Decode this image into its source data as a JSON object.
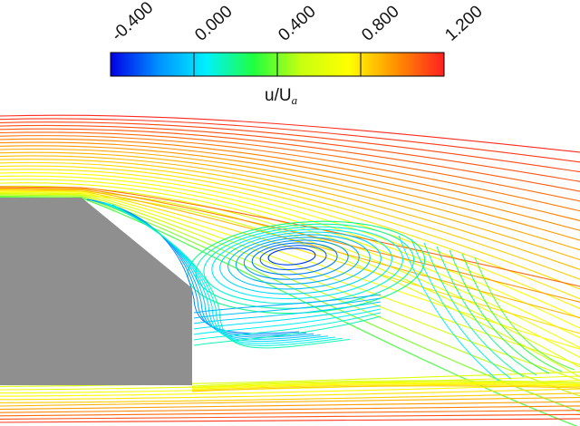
{
  "colorbar": {
    "ticks": [
      "-0.400",
      "0.000",
      "0.400",
      "0.800",
      "1.200"
    ],
    "range": [
      -0.4,
      1.2
    ],
    "title_main": "u/U",
    "title_subscript": "a",
    "colors": [
      "#0000e6",
      "#0090ff",
      "#00f0ff",
      "#20ff40",
      "#c8ff10",
      "#ffff00",
      "#ff9000",
      "#ff2020"
    ]
  },
  "body": {
    "color": "#8f8f8f"
  },
  "streamlines": {
    "upper_values": [
      1.18,
      1.15,
      1.12,
      1.1,
      1.08,
      1.05,
      1.02,
      1.0,
      0.98,
      0.95,
      0.92,
      0.9,
      0.88,
      0.85,
      0.82,
      0.8,
      0.78,
      0.75,
      0.72,
      0.7,
      0.68,
      0.65,
      0.62,
      0.6
    ],
    "lower_values": [
      1.15,
      1.1,
      1.05,
      1.0,
      0.95,
      0.9,
      0.85,
      0.8,
      0.75,
      0.7,
      0.65,
      0.6
    ],
    "vortex_values": [
      -0.3,
      -0.25,
      -0.2,
      -0.15,
      -0.1,
      -0.05,
      0.0,
      0.05,
      0.1,
      0.15,
      0.2
    ],
    "trailing_values": [
      0.05,
      0.1,
      0.15,
      0.2,
      0.25,
      0.3,
      0.35
    ]
  }
}
